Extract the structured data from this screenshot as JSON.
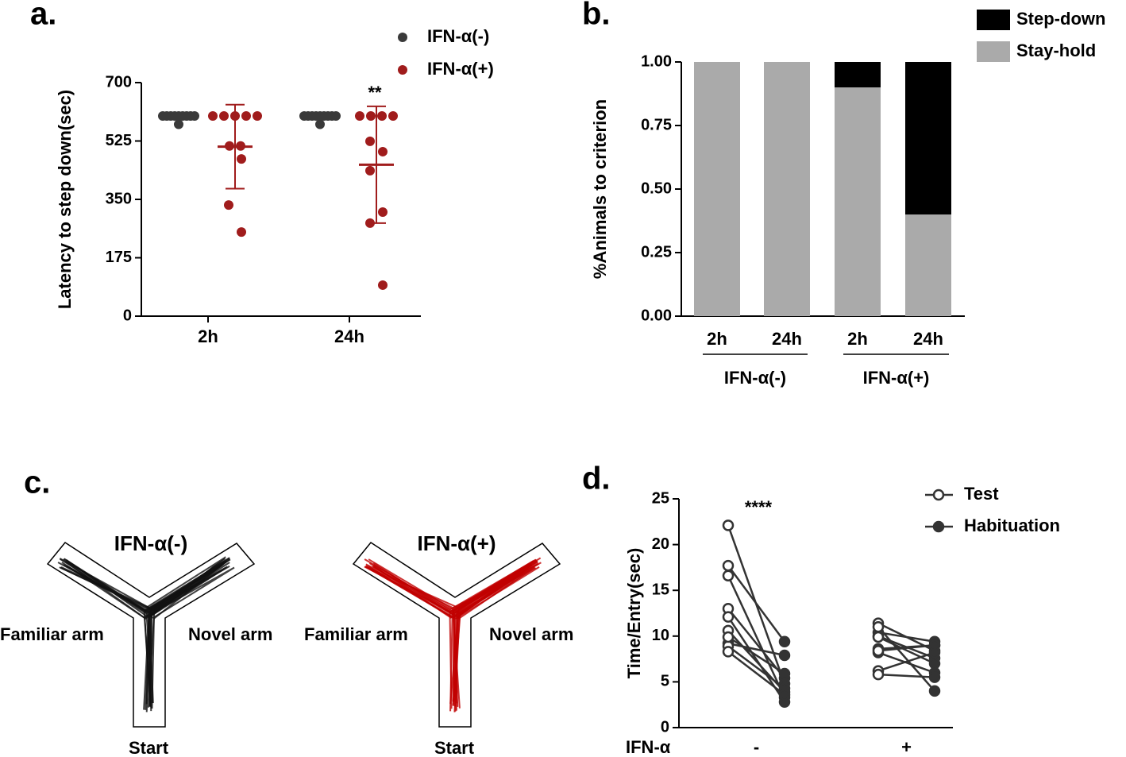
{
  "panel_labels": [
    "a.",
    "b.",
    "c.",
    "d."
  ],
  "chart_data": [
    {
      "type": "dot",
      "y_label": "Latency to step down(sec)",
      "categories": [
        "2h",
        "24h"
      ],
      "series": [
        {
          "name": "IFN-α(-)",
          "color": "#3a3a3a",
          "values": [
            [
              600,
              600,
              600,
              600,
              600,
              600,
              600,
              600,
              600,
              575
            ],
            [
              600,
              600,
              600,
              600,
              600,
              600,
              600,
              600,
              600,
              575
            ]
          ]
        },
        {
          "name": "IFN-α(+)",
          "color": "#a01c1c",
          "values": [
            [
              600,
              600,
              600,
              600,
              600,
              510,
              510,
              471,
              333,
              252
            ],
            [
              600,
              600,
              600,
              600,
              524,
              493,
              436,
              312,
              279,
              93
            ]
          ],
          "mean": [
            508,
            454
          ],
          "sd": [
            126,
            175
          ]
        }
      ],
      "ylim": [
        0,
        700
      ],
      "yticks": [
        0,
        175,
        350,
        525,
        700
      ],
      "annotation": "**"
    },
    {
      "type": "stacked_bar",
      "y_label": "%Animals to criterion",
      "categories": [
        "2h",
        "24h",
        "2h",
        "24h"
      ],
      "group_labels": [
        "IFN-α(-)",
        "IFN-α(+)"
      ],
      "series": [
        {
          "name": "Stay-hold",
          "color": "#aaaaaa",
          "values": [
            1,
            1,
            0.9,
            0.4
          ]
        },
        {
          "name": "Step-down",
          "color": "#000000",
          "values": [
            0,
            0,
            0.1,
            0.6
          ]
        }
      ],
      "ylim": [
        0,
        1
      ],
      "yticks": [
        {
          "value": 0,
          "label": "0.00"
        },
        {
          "value": 0.25,
          "label": "0.25"
        },
        {
          "value": 0.5,
          "label": "0.50"
        },
        {
          "value": 0.75,
          "label": "0.75"
        },
        {
          "value": 1,
          "label": "1.00"
        }
      ]
    },
    {
      "type": "paired",
      "y_label": "Time/Entry(sec)",
      "x_label": "IFN-α",
      "categories": [
        "-",
        "+"
      ],
      "series": [
        {
          "name": "Test",
          "color": "#333333",
          "fill": "#ffffff",
          "values": [
            [
              22.1,
              17.7,
              16.6,
              13.0,
              12.1,
              10.6,
              9.2,
              8.9,
              8.3,
              9.9
            ],
            [
              11.4,
              10.4,
              10.0,
              8.6,
              8.2,
              6.2,
              5.8,
              8.4,
              11.0,
              9.9
            ]
          ]
        },
        {
          "name": "Habituation",
          "color": "#333333",
          "fill": "#333333",
          "values": [
            [
              4.8,
              9.4,
              3.3,
              5.4,
              2.8,
              3.9,
              7.9,
              4.3,
              3.6,
              5.9
            ],
            [
              8.4,
              9.4,
              7.6,
              9.0,
              6.0,
              8.2,
              5.5,
              9.0,
              4.0,
              7.0
            ]
          ]
        }
      ],
      "ylim": [
        0,
        25
      ],
      "yticks": [
        0,
        5,
        10,
        15,
        20,
        25
      ],
      "annotation": "****"
    }
  ],
  "maze": [
    {
      "title": "IFN-α(-)",
      "color": "#111111",
      "left_label": "Familiar arm",
      "right_label": "Novel arm",
      "bottom_label": "Start"
    },
    {
      "title": "IFN-α(+)",
      "color": "#c00000",
      "left_label": "Familiar arm",
      "right_label": "Novel arm",
      "bottom_label": "Start"
    }
  ]
}
